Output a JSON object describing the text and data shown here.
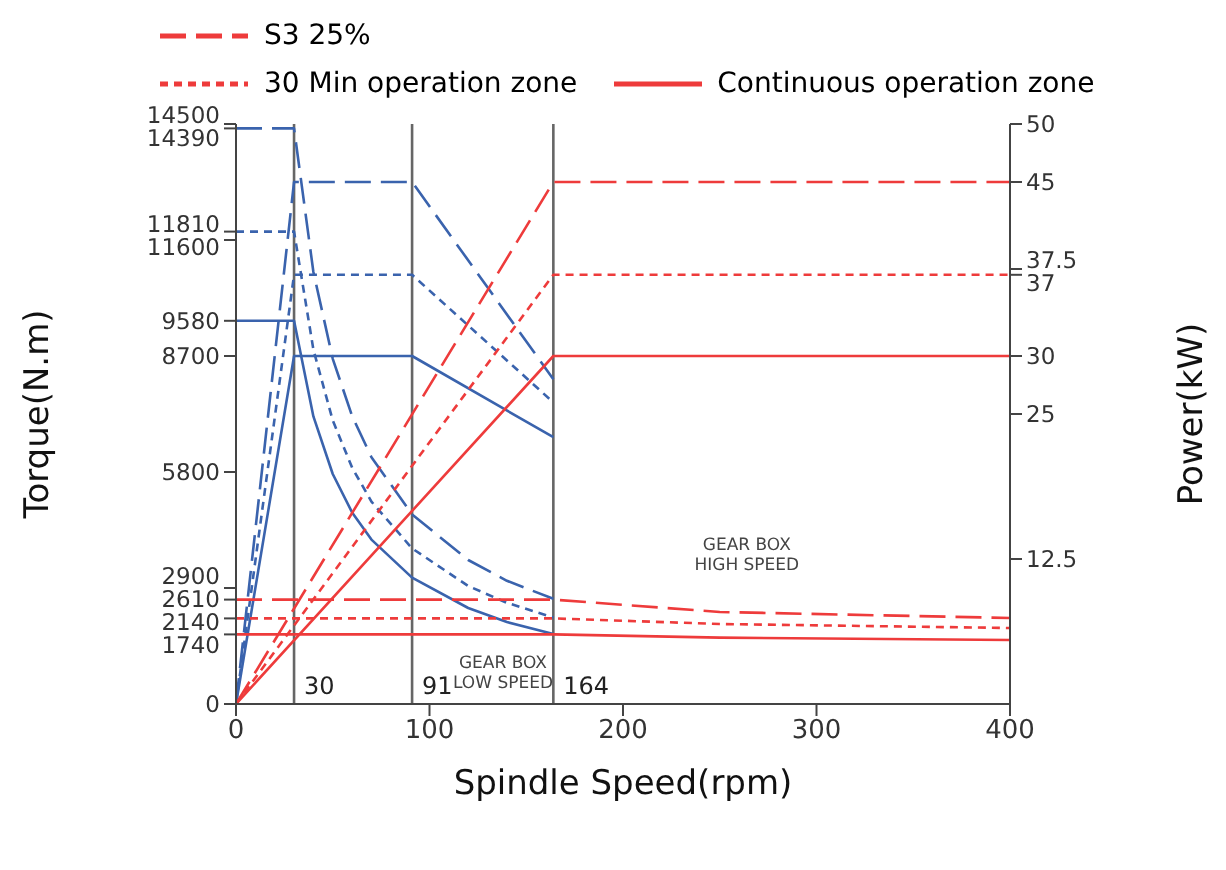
{
  "chart_data": {
    "type": "line",
    "xlabel": "Spindle Speed(rpm)",
    "ylabel": "Torque(N.m)",
    "y2label": "Power(kW)",
    "xlim": [
      0,
      400
    ],
    "xticks": [
      0,
      100,
      200,
      300,
      400
    ],
    "ylim": [
      0,
      14500
    ],
    "yticks": [
      0,
      1740,
      2140,
      2610,
      2900,
      5800,
      8700,
      9580,
      11600,
      11810,
      14390,
      14500
    ],
    "y2lim": [
      0,
      50
    ],
    "y2ticks": [
      12.5,
      25,
      30,
      37,
      37.5,
      45,
      50
    ],
    "legend": "top",
    "grid": false,
    "series": [
      {
        "color": "#3a63ad",
        "line_style": "dashed",
        "axis": "y",
        "x": [
          0,
          30,
          40,
          50,
          60,
          70,
          91,
          120,
          140,
          164
        ],
        "values": [
          14390,
          14390,
          10800,
          8630,
          7200,
          6170,
          4740,
          3600,
          3080,
          2630
        ]
      },
      {
        "color": "#3a63ad",
        "line_style": "dotted",
        "axis": "y",
        "x": [
          0,
          30,
          40,
          50,
          60,
          70,
          91,
          120,
          140,
          164
        ],
        "values": [
          11810,
          11810,
          8860,
          7090,
          5910,
          5060,
          3890,
          2950,
          2530,
          2160
        ]
      },
      {
        "color": "#3a63ad",
        "line_style": "solid",
        "axis": "y",
        "x": [
          0,
          30,
          40,
          50,
          60,
          70,
          91,
          120,
          140,
          164
        ],
        "values": [
          9580,
          9580,
          7190,
          5750,
          4790,
          4110,
          3160,
          2400,
          2050,
          1750
        ]
      },
      {
        "color": "#3a63ad",
        "line_style": "dashed",
        "axis": "y2",
        "x": [
          0,
          30,
          91,
          164
        ],
        "values": [
          0,
          45,
          45,
          28
        ]
      },
      {
        "color": "#3a63ad",
        "line_style": "dotted",
        "axis": "y2",
        "x": [
          0,
          30,
          91,
          164
        ],
        "values": [
          0,
          37,
          37,
          26
        ]
      },
      {
        "color": "#3a63ad",
        "line_style": "solid",
        "axis": "y2",
        "x": [
          0,
          30,
          91,
          164
        ],
        "values": [
          0,
          30,
          30,
          23
        ]
      },
      {
        "color": "#ee3b3b",
        "line_style": "dashed",
        "axis": "y",
        "x": [
          0,
          164,
          250,
          400
        ],
        "values": [
          2610,
          2610,
          2300,
          2150
        ]
      },
      {
        "color": "#ee3b3b",
        "line_style": "dotted",
        "axis": "y",
        "x": [
          0,
          164,
          250,
          400
        ],
        "values": [
          2140,
          2140,
          2000,
          1900
        ]
      },
      {
        "color": "#ee3b3b",
        "line_style": "solid",
        "axis": "y",
        "x": [
          0,
          164,
          250,
          400
        ],
        "values": [
          1740,
          1740,
          1660,
          1600
        ]
      },
      {
        "name": "S3 25%",
        "color": "#ee3b3b",
        "line_style": "dashed",
        "axis": "y2",
        "x": [
          0,
          164,
          400
        ],
        "values": [
          0,
          45,
          45
        ]
      },
      {
        "name": "30 Min operation zone",
        "color": "#ee3b3b",
        "line_style": "dotted",
        "axis": "y2",
        "x": [
          0,
          164,
          400
        ],
        "values": [
          0,
          37,
          37
        ]
      },
      {
        "name": "Continuous operation zone",
        "color": "#ee3b3b",
        "line_style": "solid",
        "axis": "y2",
        "x": [
          0,
          164,
          400
        ],
        "values": [
          0,
          30,
          30
        ]
      }
    ],
    "ref_lines": [
      {
        "axis": "x",
        "value": 30,
        "label": "30",
        "color": "#666666"
      },
      {
        "axis": "x",
        "value": 91,
        "label": "91",
        "color": "#666666"
      },
      {
        "axis": "x",
        "value": 164,
        "label": "164",
        "color": "#666666"
      }
    ],
    "annotations": [
      "GEAR BOX\nLOW SPEED",
      "GEAR BOX\nHIGH SPEED"
    ]
  }
}
